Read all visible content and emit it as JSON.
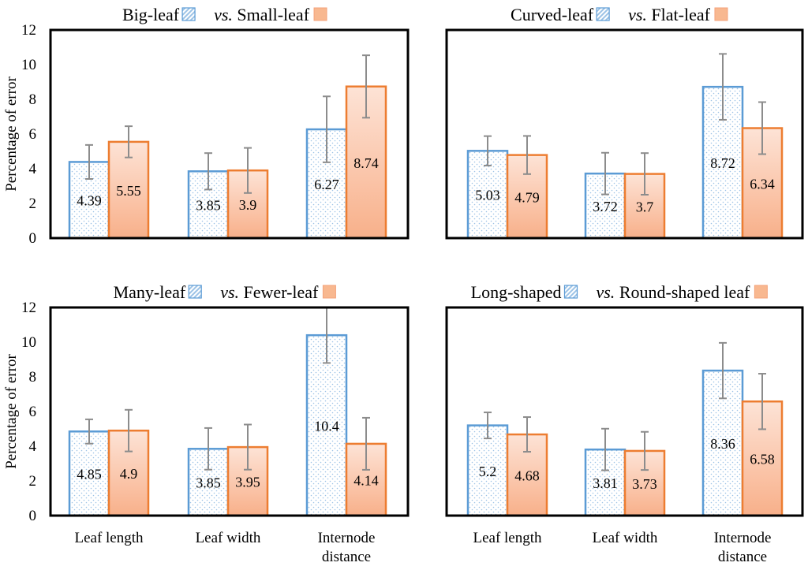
{
  "chart_data": [
    {
      "type": "bar",
      "title": {
        "a": "Big-leaf",
        "vs": "vs.",
        "b": "Small-leaf"
      },
      "categories": [
        "Leaf length",
        "Leaf width",
        "Internode distance"
      ],
      "ylabel": "Percentage of error",
      "ylim": [
        0,
        12
      ],
      "yticks": [
        0,
        2,
        4,
        6,
        8,
        10,
        12
      ],
      "series": [
        {
          "name": "Big-leaf",
          "values": [
            4.39,
            3.85,
            6.27
          ],
          "errors": [
            0.98,
            1.05,
            1.9
          ]
        },
        {
          "name": "Small-leaf",
          "values": [
            5.55,
            3.9,
            8.74
          ],
          "errors": [
            0.9,
            1.3,
            1.8
          ]
        }
      ],
      "data_labels": [
        [
          "4.39",
          "3.85",
          "6.27"
        ],
        [
          "5.55",
          "3.9",
          "8.74"
        ]
      ]
    },
    {
      "type": "bar",
      "title": {
        "a": "Curved-leaf",
        "vs": "vs.",
        "b": "Flat-leaf"
      },
      "categories": [
        "Leaf length",
        "Leaf width",
        "Internode distance"
      ],
      "ylabel": "",
      "ylim": [
        0,
        12
      ],
      "yticks": [],
      "series": [
        {
          "name": "Curved-leaf",
          "values": [
            5.03,
            3.72,
            8.72
          ],
          "errors": [
            0.85,
            1.2,
            1.9
          ]
        },
        {
          "name": "Flat-leaf",
          "values": [
            4.79,
            3.7,
            6.34
          ],
          "errors": [
            1.1,
            1.2,
            1.5
          ]
        }
      ],
      "data_labels": [
        [
          "5.03",
          "3.72",
          "8.72"
        ],
        [
          "4.79",
          "3.7",
          "6.34"
        ]
      ]
    },
    {
      "type": "bar",
      "title": {
        "a": "Many-leaf",
        "vs": "vs.",
        "b": "Fewer-leaf"
      },
      "categories": [
        "Leaf length",
        "Internode distance"
      ],
      "categories_full": [
        "Leaf length",
        "Leaf width",
        "Internode distance"
      ],
      "ylabel": "Percentage of error",
      "ylim": [
        0,
        12
      ],
      "yticks": [
        0,
        2,
        4,
        6,
        8,
        10,
        12
      ],
      "series": [
        {
          "name": "Many-leaf",
          "values": [
            4.85,
            3.85,
            10.4
          ],
          "errors": [
            0.7,
            1.2,
            1.6
          ]
        },
        {
          "name": "Fewer-leaf",
          "values": [
            4.9,
            3.95,
            4.14
          ],
          "errors": [
            1.2,
            1.3,
            1.5
          ]
        }
      ],
      "data_labels": [
        [
          "4.85",
          "3.85",
          "10.4"
        ],
        [
          "4.9",
          "3.95",
          "4.14"
        ]
      ]
    },
    {
      "type": "bar",
      "title": {
        "a": "Long-shaped",
        "vs": "vs.",
        "b": "Round-shaped leaf"
      },
      "categories": [
        "Leaf length",
        "Leaf width",
        "Internode distance"
      ],
      "ylabel": "",
      "ylim": [
        0,
        12
      ],
      "yticks": [],
      "series": [
        {
          "name": "Long-shaped",
          "values": [
            5.2,
            3.81,
            8.36
          ],
          "errors": [
            0.75,
            1.2,
            1.6
          ]
        },
        {
          "name": "Round-shaped leaf",
          "values": [
            4.68,
            3.73,
            6.58
          ],
          "errors": [
            1.0,
            1.1,
            1.6
          ]
        }
      ],
      "data_labels": [
        [
          "5.2",
          "3.81",
          "8.36"
        ],
        [
          "4.68",
          "3.73",
          "6.58"
        ]
      ]
    }
  ],
  "colors": {
    "series_a_stroke": "#5b9bd5",
    "series_a_dot": "#9dc3e6",
    "series_b_stroke": "#ed7d31",
    "series_b_fill_top": "#fde3d6",
    "series_b_fill_bottom": "#f8b38e",
    "error_bar": "#8c8c8c",
    "axis": "#000000"
  }
}
